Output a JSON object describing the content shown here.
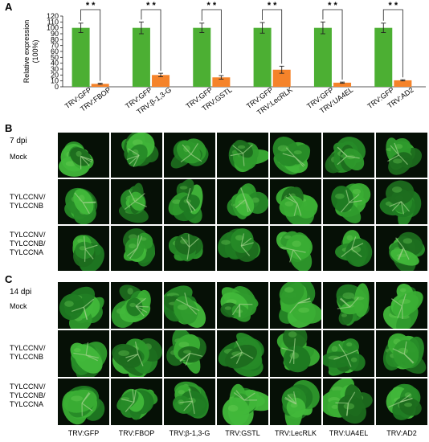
{
  "panels": {
    "a_label": "A",
    "b_label": "B",
    "c_label": "C"
  },
  "chart_data": {
    "type": "bar",
    "ylabel": "Relative expression (100%)",
    "yticks": [
      "0",
      "10",
      "20",
      "30",
      "40",
      "50",
      "60",
      "70",
      "80",
      "90",
      "100",
      "110",
      "120"
    ],
    "ylim": [
      0,
      120
    ],
    "significance": "* *",
    "groups": [
      {
        "ctrl_label": "TRV:GFP",
        "trt_label": "TRV:FBOP",
        "ctrl_value": 100,
        "ctrl_err": 8,
        "trt_value": 5,
        "trt_err": 1
      },
      {
        "ctrl_label": "TRV:GFP",
        "trt_label": "TRV:β-1,3-G",
        "ctrl_value": 100,
        "ctrl_err": 10,
        "trt_value": 20,
        "trt_err": 3
      },
      {
        "ctrl_label": "TRV:GFP",
        "trt_label": "TRV:GSTL",
        "ctrl_value": 100,
        "ctrl_err": 8,
        "trt_value": 16,
        "trt_err": 3
      },
      {
        "ctrl_label": "TRV:GFP",
        "trt_label": "TRV:LecRLK",
        "ctrl_value": 100,
        "ctrl_err": 9,
        "trt_value": 29,
        "trt_err": 6
      },
      {
        "ctrl_label": "TRV:GFP",
        "trt_label": "TRV:UA4EL",
        "ctrl_value": 100,
        "ctrl_err": 10,
        "trt_value": 7,
        "trt_err": 1
      },
      {
        "ctrl_label": "TRV:GFP",
        "trt_label": "TRV:AD2",
        "ctrl_value": 100,
        "ctrl_err": 8,
        "trt_value": 11,
        "trt_err": 1
      }
    ],
    "colors": {
      "control": "#4caf33",
      "treatment": "#f5832a"
    }
  },
  "panel_b": {
    "dpi": "7 dpi",
    "rows": [
      "Mock",
      "TYLCCNV/\nTYLCCNB",
      "TYLCCNV/\nTYLCCNB/\nTYLCCNA"
    ]
  },
  "panel_c": {
    "dpi": "14 dpi",
    "rows": [
      "Mock",
      "TYLCCNV/\nTYLCCNB",
      "TYLCCNV/\nTYLCCNB/\nTYLCCNA"
    ]
  },
  "columns": [
    "TRV:GFP",
    "TRV:FBOP",
    "TRV:β-1,3-G",
    "TRV:GSTL",
    "TRV:LecRLK",
    "TRV:UA4EL",
    "TRV:AD2"
  ]
}
